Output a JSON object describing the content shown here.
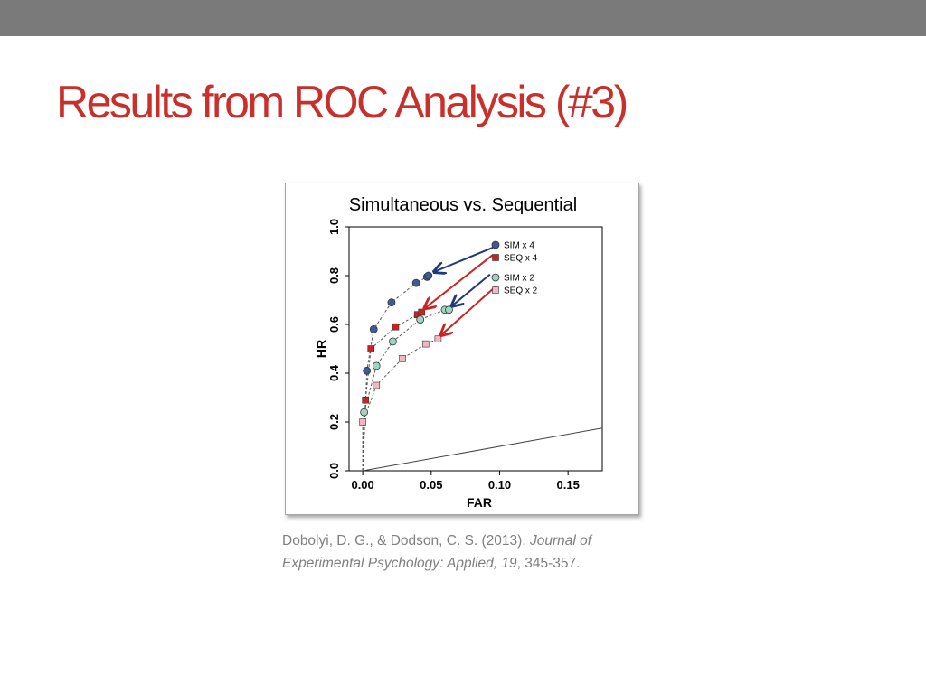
{
  "slide": {
    "title": "Results from ROC Analysis (#3)"
  },
  "citation": {
    "authors": "Dobolyi, D. G., & Dodson, C. S. (2013). ",
    "journal": "Journal of Experimental Psychology: Applied, 19",
    "pages": ", 345-357."
  },
  "chart_data": {
    "type": "scatter",
    "title": "Simultaneous vs. Sequential",
    "xlabel": "FAR",
    "ylabel": "HR",
    "xlim": [
      -0.01,
      0.175
    ],
    "ylim": [
      0.0,
      1.0
    ],
    "xticks": [
      0.0,
      0.05,
      0.1,
      0.15
    ],
    "xtick_labels": [
      "0.00",
      "0.05",
      "0.10",
      "0.15"
    ],
    "yticks": [
      0.0,
      0.2,
      0.4,
      0.6,
      0.8,
      1.0
    ],
    "ytick_labels": [
      "0.0",
      "0.2",
      "0.4",
      "0.6",
      "0.8",
      "1.0"
    ],
    "grid": false,
    "legend_position": "top-right",
    "chance_line": {
      "x": [
        0.0,
        0.175
      ],
      "y": [
        0.0,
        0.175
      ]
    },
    "series": [
      {
        "name": "SIM x 4",
        "marker": "circle",
        "color": "#3d5a99",
        "x": [
          0.003,
          0.008,
          0.021,
          0.039,
          0.047,
          0.048
        ],
        "y": [
          0.41,
          0.58,
          0.69,
          0.77,
          0.795,
          0.8
        ]
      },
      {
        "name": "SEQ x 4",
        "marker": "square",
        "color": "#cc2222",
        "x": [
          0.002,
          0.006,
          0.024,
          0.04,
          0.043
        ],
        "y": [
          0.29,
          0.5,
          0.59,
          0.64,
          0.65
        ]
      },
      {
        "name": "SIM x 2",
        "marker": "circle",
        "color": "#9fd4c2",
        "x": [
          0.001,
          0.01,
          0.022,
          0.042,
          0.06,
          0.063
        ],
        "y": [
          0.24,
          0.43,
          0.53,
          0.62,
          0.66,
          0.66
        ]
      },
      {
        "name": "SEQ x 2",
        "marker": "square",
        "color": "#f0b8c4",
        "x": [
          0.0,
          0.01,
          0.029,
          0.046,
          0.055
        ],
        "y": [
          0.2,
          0.35,
          0.46,
          0.52,
          0.54
        ]
      }
    ],
    "annotations": [
      {
        "type": "arrow",
        "color": "#1f3a7a",
        "from": [
          0.095,
          0.915
        ],
        "to": [
          0.052,
          0.815
        ]
      },
      {
        "type": "arrow",
        "color": "#cc2222",
        "from": [
          0.095,
          0.885
        ],
        "to": [
          0.045,
          0.665
        ]
      },
      {
        "type": "arrow",
        "color": "#1f3a7a",
        "from": [
          0.093,
          0.805
        ],
        "to": [
          0.065,
          0.675
        ]
      },
      {
        "type": "arrow",
        "color": "#cc2222",
        "from": [
          0.097,
          0.755
        ],
        "to": [
          0.057,
          0.555
        ]
      }
    ]
  }
}
